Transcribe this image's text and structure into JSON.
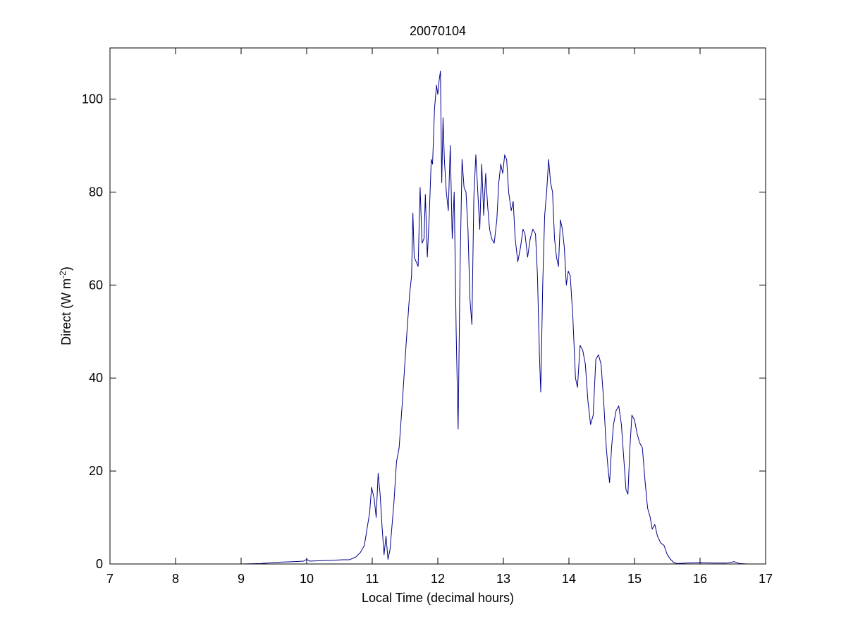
{
  "chart_data": {
    "type": "line",
    "title": "20070104",
    "xlabel": "Local Time (decimal hours)",
    "ylabel": {
      "main": "Direct (W m",
      "superscript": "-2",
      "close": ")"
    },
    "xlim": [
      7,
      17
    ],
    "ylim": [
      0,
      111
    ],
    "xticks": [
      7,
      8,
      9,
      10,
      11,
      12,
      13,
      14,
      15,
      16,
      17
    ],
    "xtick_labels": [
      "7",
      "8",
      "9",
      "10",
      "11",
      "12",
      "13",
      "14",
      "15",
      "16",
      "17"
    ],
    "yticks": [
      0,
      20,
      40,
      60,
      80,
      100
    ],
    "ytick_labels": [
      "0",
      "20",
      "40",
      "60",
      "80",
      "100"
    ],
    "grid": false,
    "box": true,
    "series": [
      {
        "color": "#00008B",
        "points": [
          [
            8.0,
            0.0
          ],
          [
            8.5,
            0.0
          ],
          [
            9.0,
            0.0
          ],
          [
            9.3,
            0.1
          ],
          [
            9.6,
            0.4
          ],
          [
            9.8,
            0.5
          ],
          [
            9.95,
            0.6
          ],
          [
            10.0,
            1.0
          ],
          [
            10.05,
            0.6
          ],
          [
            10.2,
            0.7
          ],
          [
            10.4,
            0.8
          ],
          [
            10.55,
            0.9
          ],
          [
            10.65,
            0.9
          ],
          [
            10.75,
            1.5
          ],
          [
            10.82,
            2.5
          ],
          [
            10.88,
            4.0
          ],
          [
            10.92,
            7.5
          ],
          [
            10.96,
            11.0
          ],
          [
            10.99,
            16.5
          ],
          [
            11.03,
            14.0
          ],
          [
            11.06,
            10.0
          ],
          [
            11.09,
            19.5
          ],
          [
            11.12,
            15.0
          ],
          [
            11.15,
            8.0
          ],
          [
            11.18,
            2.0
          ],
          [
            11.21,
            6.0
          ],
          [
            11.24,
            1.0
          ],
          [
            11.27,
            3.0
          ],
          [
            11.3,
            8.0
          ],
          [
            11.33,
            13.0
          ],
          [
            11.37,
            22.0
          ],
          [
            11.41,
            25.0
          ],
          [
            11.46,
            35.0
          ],
          [
            11.52,
            48.0
          ],
          [
            11.57,
            58.0
          ],
          [
            11.6,
            62.0
          ],
          [
            11.62,
            75.5
          ],
          [
            11.64,
            66.0
          ],
          [
            11.67,
            65.0
          ],
          [
            11.7,
            64.0
          ],
          [
            11.73,
            81.0
          ],
          [
            11.76,
            69.0
          ],
          [
            11.79,
            70.0
          ],
          [
            11.81,
            79.5
          ],
          [
            11.84,
            66.0
          ],
          [
            11.87,
            75.0
          ],
          [
            11.9,
            87.0
          ],
          [
            11.92,
            86.0
          ],
          [
            11.95,
            98.0
          ],
          [
            11.98,
            103.0
          ],
          [
            12.0,
            101.0
          ],
          [
            12.02,
            104.0
          ],
          [
            12.04,
            106.0
          ],
          [
            12.06,
            82.0
          ],
          [
            12.08,
            96.0
          ],
          [
            12.1,
            87.0
          ],
          [
            12.13,
            80.0
          ],
          [
            12.16,
            76.0
          ],
          [
            12.19,
            90.0
          ],
          [
            12.22,
            70.0
          ],
          [
            12.25,
            80.0
          ],
          [
            12.28,
            50.0
          ],
          [
            12.31,
            29.0
          ],
          [
            12.34,
            64.0
          ],
          [
            12.37,
            87.0
          ],
          [
            12.4,
            81.0
          ],
          [
            12.43,
            80.0
          ],
          [
            12.46,
            72.0
          ],
          [
            12.49,
            57.0
          ],
          [
            12.52,
            51.5
          ],
          [
            12.55,
            79.0
          ],
          [
            12.58,
            88.0
          ],
          [
            12.61,
            80.0
          ],
          [
            12.64,
            72.0
          ],
          [
            12.67,
            86.0
          ],
          [
            12.7,
            75.0
          ],
          [
            12.73,
            84.0
          ],
          [
            12.76,
            77.0
          ],
          [
            12.79,
            72.0
          ],
          [
            12.82,
            70.0
          ],
          [
            12.86,
            69.0
          ],
          [
            12.9,
            74.0
          ],
          [
            12.93,
            82.0
          ],
          [
            12.96,
            86.0
          ],
          [
            12.99,
            84.0
          ],
          [
            13.02,
            88.0
          ],
          [
            13.05,
            87.0
          ],
          [
            13.08,
            80.0
          ],
          [
            13.12,
            76.0
          ],
          [
            13.15,
            78.0
          ],
          [
            13.18,
            70.0
          ],
          [
            13.22,
            65.0
          ],
          [
            13.26,
            68.0
          ],
          [
            13.3,
            72.0
          ],
          [
            13.33,
            71.0
          ],
          [
            13.37,
            66.0
          ],
          [
            13.41,
            70.0
          ],
          [
            13.45,
            72.0
          ],
          [
            13.49,
            71.0
          ],
          [
            13.52,
            62.0
          ],
          [
            13.55,
            45.0
          ],
          [
            13.57,
            37.0
          ],
          [
            13.6,
            60.0
          ],
          [
            13.63,
            75.0
          ],
          [
            13.66,
            80.0
          ],
          [
            13.69,
            87.0
          ],
          [
            13.72,
            82.0
          ],
          [
            13.75,
            80.0
          ],
          [
            13.78,
            70.0
          ],
          [
            13.81,
            66.0
          ],
          [
            13.84,
            64.0
          ],
          [
            13.87,
            74.0
          ],
          [
            13.9,
            72.0
          ],
          [
            13.93,
            68.0
          ],
          [
            13.96,
            60.0
          ],
          [
            13.99,
            63.0
          ],
          [
            14.02,
            62.0
          ],
          [
            14.06,
            53.0
          ],
          [
            14.1,
            40.0
          ],
          [
            14.13,
            38.0
          ],
          [
            14.17,
            47.0
          ],
          [
            14.21,
            46.0
          ],
          [
            14.25,
            43.0
          ],
          [
            14.29,
            35.0
          ],
          [
            14.33,
            30.0
          ],
          [
            14.37,
            32.0
          ],
          [
            14.41,
            44.0
          ],
          [
            14.45,
            45.0
          ],
          [
            14.49,
            43.0
          ],
          [
            14.53,
            35.0
          ],
          [
            14.57,
            25.0
          ],
          [
            14.6,
            20.0
          ],
          [
            14.62,
            17.5
          ],
          [
            14.65,
            25.0
          ],
          [
            14.68,
            30.0
          ],
          [
            14.72,
            33.0
          ],
          [
            14.76,
            34.0
          ],
          [
            14.8,
            30.0
          ],
          [
            14.84,
            22.0
          ],
          [
            14.87,
            16.0
          ],
          [
            14.9,
            15.0
          ],
          [
            14.93,
            25.0
          ],
          [
            14.96,
            32.0
          ],
          [
            15.0,
            31.0
          ],
          [
            15.04,
            28.0
          ],
          [
            15.08,
            26.0
          ],
          [
            15.12,
            25.0
          ],
          [
            15.16,
            18.0
          ],
          [
            15.2,
            12.0
          ],
          [
            15.24,
            10.0
          ],
          [
            15.27,
            7.5
          ],
          [
            15.31,
            8.5
          ],
          [
            15.35,
            6.0
          ],
          [
            15.4,
            4.5
          ],
          [
            15.45,
            4.0
          ],
          [
            15.5,
            2.0
          ],
          [
            15.55,
            1.0
          ],
          [
            15.6,
            0.3
          ],
          [
            15.65,
            0.1
          ],
          [
            15.8,
            0.2
          ],
          [
            16.0,
            0.3
          ],
          [
            16.2,
            0.2
          ],
          [
            16.4,
            0.2
          ],
          [
            16.52,
            0.5
          ],
          [
            16.6,
            0.1
          ],
          [
            16.72,
            0.0
          ]
        ]
      }
    ]
  }
}
